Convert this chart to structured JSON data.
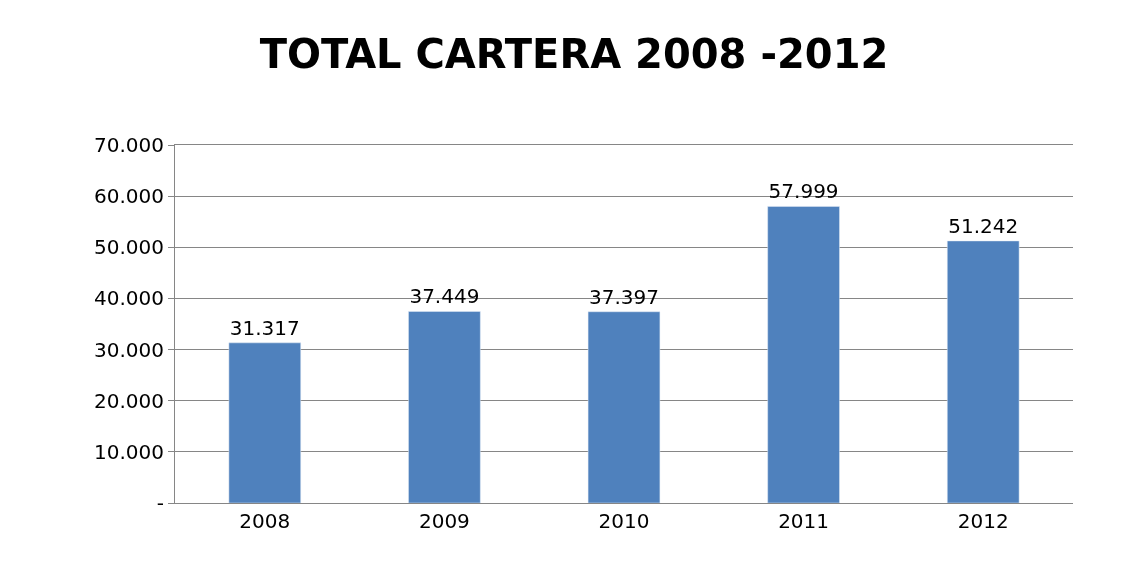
{
  "chart_data": {
    "type": "bar",
    "title": "TOTAL CARTERA 2008 -2012",
    "categories": [
      "2008",
      "2009",
      "2010",
      "2011",
      "2012"
    ],
    "values": [
      31317,
      37449,
      37397,
      57999,
      51242
    ],
    "value_labels": [
      "31.317",
      "37.449",
      "37.397",
      "57.999",
      "51.242"
    ],
    "color": "#4f81bd",
    "ylim": [
      0,
      70000
    ],
    "yticks": [
      {
        "value": 0,
        "label": "-"
      },
      {
        "value": 10000,
        "label": "10.000"
      },
      {
        "value": 20000,
        "label": "20.000"
      },
      {
        "value": 30000,
        "label": "30.000"
      },
      {
        "value": 40000,
        "label": "40.000"
      },
      {
        "value": 50000,
        "label": "50.000"
      },
      {
        "value": 60000,
        "label": "60.000"
      },
      {
        "value": 70000,
        "label": "70.000"
      }
    ],
    "grid": "y"
  }
}
